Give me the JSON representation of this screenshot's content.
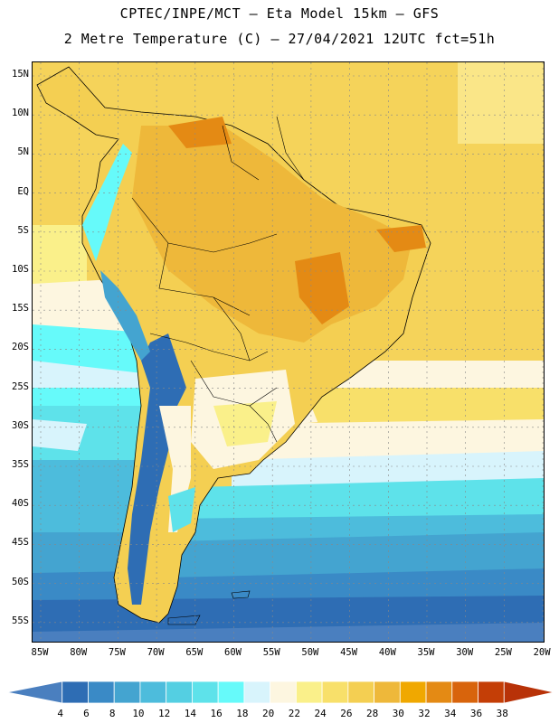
{
  "header": {
    "line1": "CPTEC/INPE/MCT –  Eta Model 15km – GFS",
    "line2": "2 Metre Temperature (C) – 27/04/2021 12UTC fct=51h"
  },
  "map": {
    "lat_labels": [
      "15N",
      "10N",
      "5N",
      "EQ",
      "5S",
      "10S",
      "15S",
      "20S",
      "25S",
      "30S",
      "35S",
      "40S",
      "45S",
      "50S",
      "55S"
    ],
    "lon_labels": [
      "85W",
      "80W",
      "75W",
      "70W",
      "65W",
      "60W",
      "55W",
      "50W",
      "45W",
      "40W",
      "35W",
      "30W",
      "25W",
      "20W"
    ]
  },
  "colorbar": {
    "levels": [
      "4",
      "6",
      "8",
      "10",
      "12",
      "14",
      "16",
      "18",
      "20",
      "22",
      "24",
      "26",
      "28",
      "30",
      "32",
      "34",
      "36",
      "38"
    ],
    "colors": [
      "#4a7fbf",
      "#2e6db4",
      "#3a8ac6",
      "#44a4d0",
      "#4dbcdc",
      "#54cfe2",
      "#5ee2ea",
      "#66fafa",
      "#d8f4fc",
      "#fdf6e0",
      "#faf08a",
      "#f8e06a",
      "#f4cf52",
      "#eeb83a",
      "#f0a800",
      "#e48a14",
      "#d8640c",
      "#c43e06",
      "#b83208"
    ]
  },
  "colors": {
    "sea_warm": "#f5d35a",
    "land_hot": "#eeb83a",
    "andes": "#2e6db4",
    "south_ocean": "#44a4d0"
  }
}
